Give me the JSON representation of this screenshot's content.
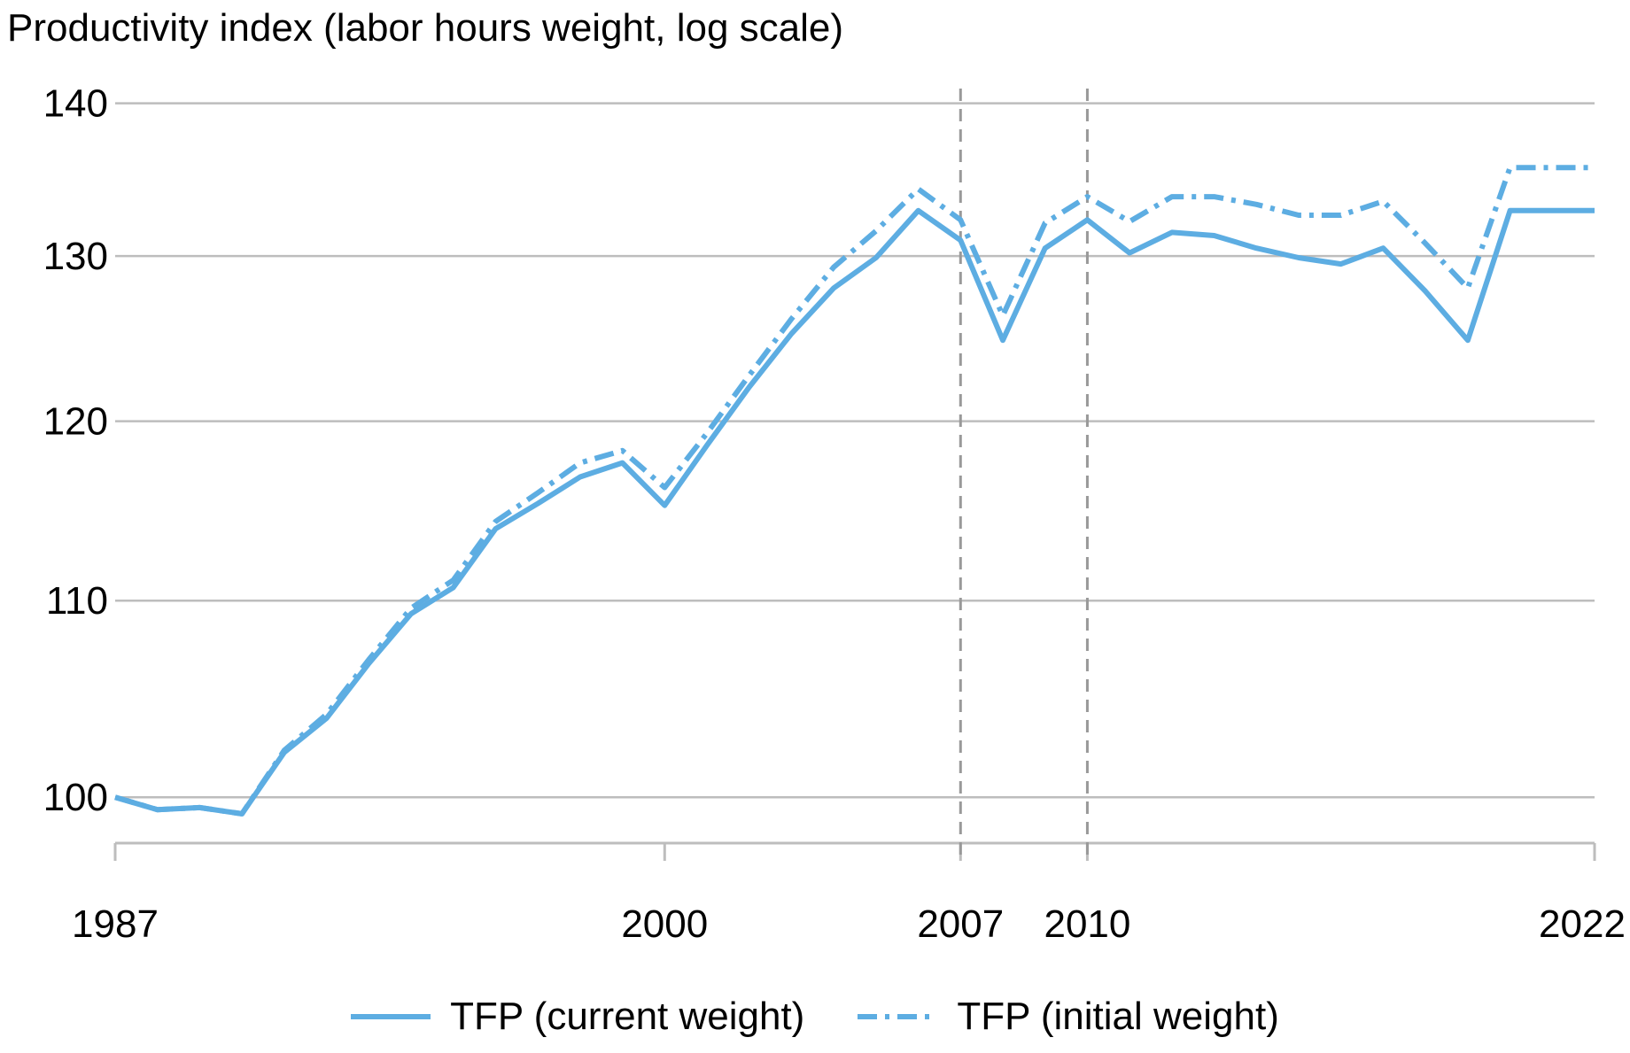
{
  "chart_data": {
    "type": "line",
    "title": "Productivity index (labor hours weight, log scale)",
    "y_scale": "log",
    "ylim": [
      97.8,
      141
    ],
    "xlim": [
      1987,
      2022
    ],
    "yticks": [
      100,
      110,
      120,
      130,
      140
    ],
    "xticks": [
      1987,
      2000,
      2007,
      2010,
      2022
    ],
    "reference_lines_x": [
      2007,
      2010
    ],
    "grid": true,
    "legend_position": "bottom",
    "x": [
      1987,
      1988,
      1989,
      1990,
      1991,
      1992,
      1993,
      1994,
      1995,
      1996,
      1997,
      1998,
      1999,
      2000,
      2001,
      2002,
      2003,
      2004,
      2005,
      2006,
      2007,
      2008,
      2009,
      2010,
      2011,
      2012,
      2013,
      2014,
      2015,
      2016,
      2017,
      2018,
      2019,
      2020,
      2021,
      2022
    ],
    "series": [
      {
        "name": "TFP (current weight)",
        "color": "#5dade2",
        "style": "solid",
        "values": [
          100.0,
          99.4,
          99.5,
          99.2,
          102.2,
          103.9,
          106.7,
          109.3,
          110.7,
          113.9,
          115.3,
          116.8,
          117.6,
          115.2,
          118.6,
          122.0,
          125.2,
          128.0,
          129.9,
          132.9,
          131.0,
          124.8,
          130.5,
          132.3,
          130.2,
          131.5,
          131.3,
          130.5,
          129.9,
          129.5,
          130.5,
          127.8,
          124.8,
          132.9,
          132.9,
          132.9
        ]
      },
      {
        "name": "TFP (initial weight)",
        "color": "#5dade2",
        "style": "dash-dot",
        "values": [
          100.0,
          99.4,
          99.5,
          99.2,
          102.3,
          104.1,
          106.9,
          109.6,
          111.1,
          114.3,
          115.9,
          117.6,
          118.3,
          116.2,
          119.3,
          122.7,
          126.1,
          129.3,
          131.6,
          134.3,
          132.3,
          126.3,
          132.1,
          133.8,
          132.2,
          133.8,
          133.8,
          133.3,
          132.6,
          132.6,
          133.5,
          130.8,
          128.0,
          135.7,
          135.7,
          135.7
        ]
      }
    ]
  }
}
